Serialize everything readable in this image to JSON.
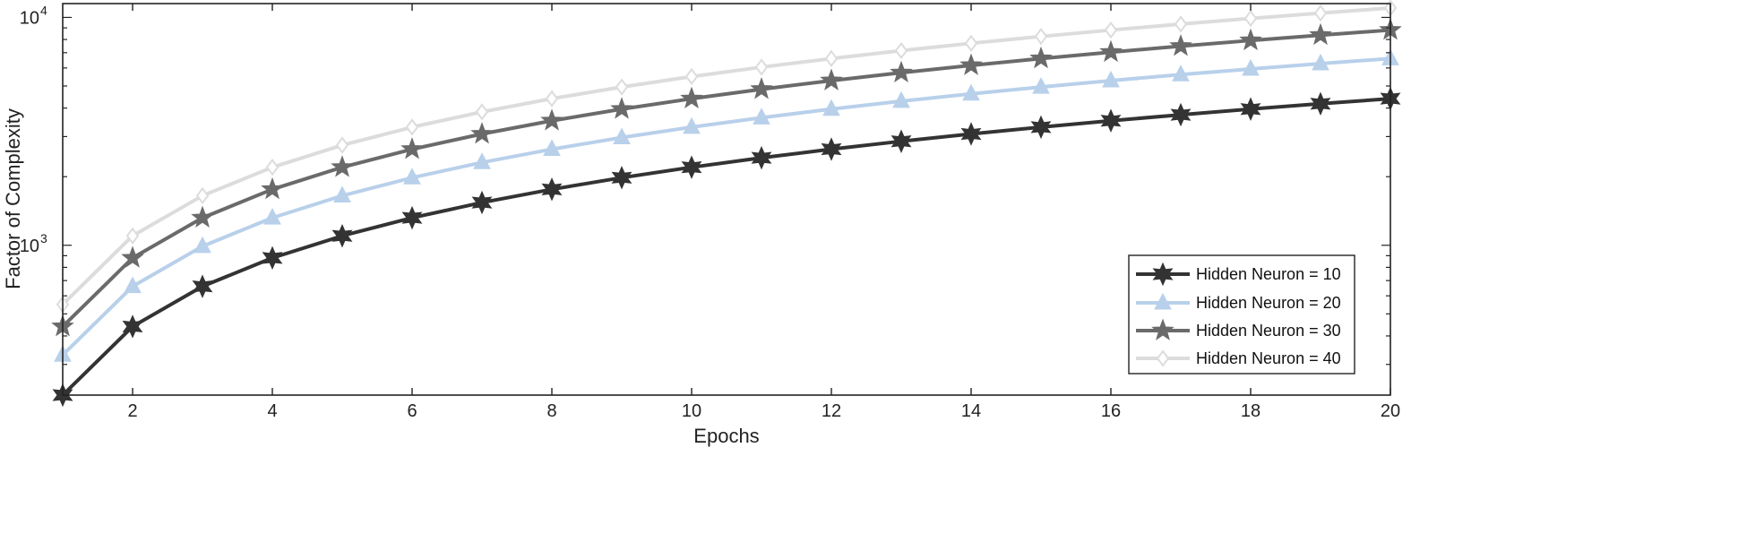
{
  "chart_data": {
    "type": "line",
    "title": "",
    "xlabel": "Epochs",
    "ylabel": "Factor of Complexity",
    "xlim": [
      1,
      20
    ],
    "ylim": [
      220,
      11500
    ],
    "yscale": "log",
    "x_ticks": [
      2,
      4,
      6,
      8,
      10,
      12,
      14,
      16,
      18,
      20
    ],
    "x_tick_labels": [
      "2",
      "4",
      "6",
      "8",
      "10",
      "12",
      "14",
      "16",
      "18",
      "20"
    ],
    "y_ticks": [
      1000,
      10000
    ],
    "y_tick_labels": [
      {
        "base": "10",
        "exp": "3"
      },
      {
        "base": "10",
        "exp": "4"
      }
    ],
    "grid": false,
    "legend_position": "bottom-right",
    "x": [
      1,
      2,
      3,
      4,
      5,
      6,
      7,
      8,
      9,
      10,
      11,
      12,
      13,
      14,
      15,
      16,
      17,
      18,
      19,
      20
    ],
    "series": [
      {
        "name": "Hidden Neuron = 10",
        "color": "#333333",
        "marker": "hexagram",
        "values": [
          220,
          440,
          660,
          880,
          1100,
          1320,
          1540,
          1760,
          1980,
          2200,
          2420,
          2640,
          2860,
          3080,
          3300,
          3520,
          3740,
          3960,
          4180,
          4400
        ]
      },
      {
        "name": "Hidden Neuron = 20",
        "color": "#b8d0ea",
        "marker": "triangle",
        "values": [
          330,
          660,
          990,
          1320,
          1650,
          1980,
          2310,
          2640,
          2970,
          3300,
          3630,
          3960,
          4290,
          4620,
          4950,
          5280,
          5610,
          5940,
          6270,
          6600
        ]
      },
      {
        "name": "Hidden Neuron = 30",
        "color": "#6a6a6a",
        "marker": "pentagram",
        "values": [
          440,
          880,
          1320,
          1760,
          2200,
          2640,
          3080,
          3520,
          3960,
          4400,
          4840,
          5280,
          5720,
          6160,
          6600,
          7040,
          7480,
          7920,
          8360,
          8800
        ]
      },
      {
        "name": "Hidden Neuron = 40",
        "color": "#dcdcdc",
        "marker": "diamond",
        "values": [
          550,
          1100,
          1650,
          2200,
          2750,
          3300,
          3850,
          4400,
          4950,
          5500,
          6050,
          6600,
          7150,
          7700,
          8250,
          8800,
          9350,
          9900,
          10450,
          11000
        ]
      }
    ]
  }
}
